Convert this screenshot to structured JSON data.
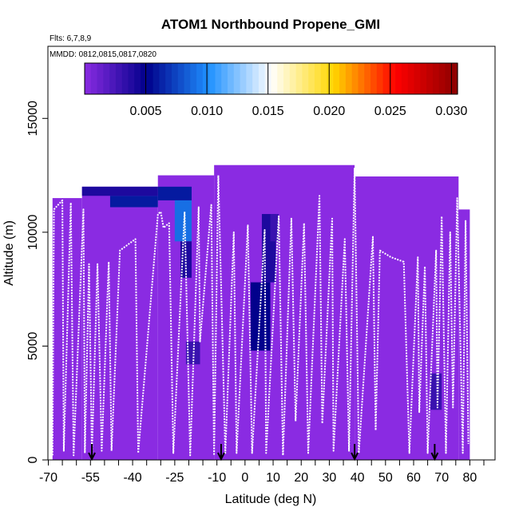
{
  "chart_data": {
    "type": "heatmap",
    "title": "ATOM1 Northbound Propene_GMI",
    "flights_label": "Flts: 6,7,8,9",
    "dates_label": "MMDD: 0812,0815,0817,0820",
    "xlabel": "Latitude (deg N)",
    "ylabel": "Altitude (m)",
    "xlim": [
      -70,
      85
    ],
    "ylim": [
      0,
      17500
    ],
    "x_ticks": [
      -70,
      -55,
      -40,
      -25,
      -10,
      0,
      10,
      20,
      30,
      40,
      50,
      60,
      70,
      80
    ],
    "x_tick_labels": [
      "-70",
      "-55",
      "-40",
      "-25",
      "-10",
      "0",
      "10",
      "20",
      "30",
      "40",
      "50",
      "60",
      "70",
      "80"
    ],
    "y_ticks": [
      0,
      5000,
      10000,
      15000
    ],
    "y_tick_labels": [
      "0",
      "5000",
      "10000",
      "15000"
    ],
    "colorbar": {
      "min": 0.0,
      "max": 0.0305,
      "ticks": [
        0.005,
        0.01,
        0.015,
        0.02,
        0.025,
        0.03
      ],
      "tick_labels": [
        "0.005",
        "0.010",
        "0.015",
        "0.020",
        "0.025",
        "0.030"
      ],
      "colors": [
        "#8a2be2",
        "#00008b",
        "#1e90ff",
        "#ffffff",
        "#ffd700",
        "#ff0000",
        "#8b0000"
      ]
    },
    "background_value": 0.0,
    "curtain_bands": [
      {
        "x0": -68.5,
        "x1": -58,
        "top": 11500
      },
      {
        "x0": -58,
        "x1": -31,
        "top": 12000
      },
      {
        "x0": -31,
        "x1": -11,
        "top": 12500
      },
      {
        "x0": -11,
        "x1": 39,
        "top": 12950
      },
      {
        "x0": 39,
        "x1": 76,
        "top": 12450
      },
      {
        "x0": 76,
        "x1": 80,
        "top": 11000
      }
    ],
    "enhanced_cells": [
      {
        "x0": -58,
        "x1": -31,
        "y0": 11600,
        "y1": 12000,
        "value": 0.004
      },
      {
        "x0": -48,
        "x1": -31,
        "y0": 11100,
        "y1": 11600,
        "value": 0.006
      },
      {
        "x0": -31,
        "x1": -19,
        "y0": 11400,
        "y1": 12000,
        "value": 0.006
      },
      {
        "x0": -25,
        "x1": -19,
        "y0": 9600,
        "y1": 11400,
        "value": 0.009
      },
      {
        "x0": -23,
        "x1": -19,
        "y0": 8000,
        "y1": 9600,
        "value": 0.004
      },
      {
        "x0": -21,
        "x1": -16,
        "y0": 4200,
        "y1": 5200,
        "value": 0.003
      },
      {
        "x0": 2,
        "x1": 9,
        "y0": 4800,
        "y1": 7800,
        "value": 0.005
      },
      {
        "x0": 6,
        "x1": 11,
        "y0": 7800,
        "y1": 10800,
        "value": 0.004
      },
      {
        "x0": 9,
        "x1": 12,
        "y0": 9600,
        "y1": 10800,
        "value": 0.003
      },
      {
        "x0": 66,
        "x1": 70,
        "y0": 2200,
        "y1": 3800,
        "value": 0.003
      }
    ],
    "flight_track": [
      {
        "lat": -68.5,
        "alt": 200
      },
      {
        "lat": -68.0,
        "alt": 11000
      },
      {
        "lat": -65.0,
        "alt": 11400
      },
      {
        "lat": -64.5,
        "alt": 400
      },
      {
        "lat": -62.0,
        "alt": 11300
      },
      {
        "lat": -61.0,
        "alt": 200
      },
      {
        "lat": -57.5,
        "alt": 11000
      },
      {
        "lat": -57.0,
        "alt": 300
      },
      {
        "lat": -55.5,
        "alt": 8600
      },
      {
        "lat": -54.5,
        "alt": 300
      },
      {
        "lat": -52.5,
        "alt": 8600
      },
      {
        "lat": -51.0,
        "alt": 400
      },
      {
        "lat": -48.5,
        "alt": 8700
      },
      {
        "lat": -47.5,
        "alt": 400
      },
      {
        "lat": -44.5,
        "alt": 9200
      },
      {
        "lat": -39.0,
        "alt": 9700
      },
      {
        "lat": -38.0,
        "alt": 300
      },
      {
        "lat": -31.0,
        "alt": 10800
      },
      {
        "lat": -30.0,
        "alt": 10900
      },
      {
        "lat": -29.0,
        "alt": 10200
      },
      {
        "lat": -27.0,
        "alt": 10400
      },
      {
        "lat": -25.5,
        "alt": 300
      },
      {
        "lat": -21.5,
        "alt": 10900
      },
      {
        "lat": -19.5,
        "alt": 200
      },
      {
        "lat": -16.5,
        "alt": 11100
      },
      {
        "lat": -16.0,
        "alt": 5200
      },
      {
        "lat": -12.0,
        "alt": 11200
      },
      {
        "lat": -11.0,
        "alt": 200
      },
      {
        "lat": -9.5,
        "alt": 12500
      },
      {
        "lat": -7.0,
        "alt": 300
      },
      {
        "lat": -4.0,
        "alt": 10000
      },
      {
        "lat": -3.0,
        "alt": 300
      },
      {
        "lat": 1.0,
        "alt": 10300
      },
      {
        "lat": 2.5,
        "alt": 300
      },
      {
        "lat": 7.0,
        "alt": 10100
      },
      {
        "lat": 7.5,
        "alt": 300
      },
      {
        "lat": 12.0,
        "alt": 10700
      },
      {
        "lat": 13.5,
        "alt": 200
      },
      {
        "lat": 16.5,
        "alt": 10600
      },
      {
        "lat": 18.0,
        "alt": 1700
      },
      {
        "lat": 21.0,
        "alt": 10400
      },
      {
        "lat": 22.5,
        "alt": 300
      },
      {
        "lat": 26.5,
        "alt": 11600
      },
      {
        "lat": 27.5,
        "alt": 1600
      },
      {
        "lat": 31.0,
        "alt": 10600
      },
      {
        "lat": 31.5,
        "alt": 400
      },
      {
        "lat": 35.5,
        "alt": 9700
      },
      {
        "lat": 37.0,
        "alt": 400
      },
      {
        "lat": 39.0,
        "alt": 12800
      },
      {
        "lat": 40.5,
        "alt": 300
      },
      {
        "lat": 45.5,
        "alt": 9800
      },
      {
        "lat": 46.5,
        "alt": 1300
      },
      {
        "lat": 48.0,
        "alt": 9200
      },
      {
        "lat": 52.0,
        "alt": 8900
      },
      {
        "lat": 56.5,
        "alt": 8700
      },
      {
        "lat": 58.5,
        "alt": 300
      },
      {
        "lat": 61.5,
        "alt": 8900
      },
      {
        "lat": 62.0,
        "alt": 2100
      },
      {
        "lat": 64.0,
        "alt": 8500
      },
      {
        "lat": 65.0,
        "alt": 300
      },
      {
        "lat": 68.0,
        "alt": 9200
      },
      {
        "lat": 68.5,
        "alt": 2300
      },
      {
        "lat": 70.0,
        "alt": 10700
      },
      {
        "lat": 71.5,
        "alt": 300
      },
      {
        "lat": 73.0,
        "alt": 10000
      },
      {
        "lat": 74.0,
        "alt": 2300
      },
      {
        "lat": 75.5,
        "alt": 11500
      },
      {
        "lat": 77.5,
        "alt": 300
      },
      {
        "lat": 78.5,
        "alt": 10500
      },
      {
        "lat": 79.5,
        "alt": 700
      }
    ],
    "date_markers": [
      -54.5,
      -8.5,
      39.0,
      67.5
    ]
  }
}
